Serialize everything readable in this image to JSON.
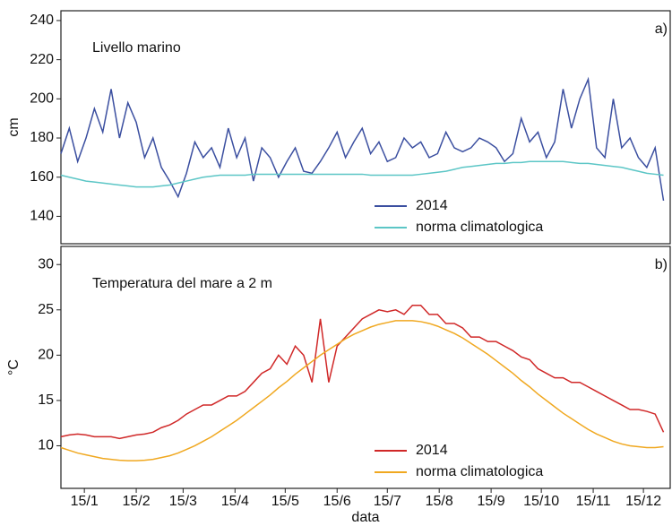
{
  "chart_data": [
    {
      "type": "line",
      "title": "Livello marino",
      "panel_label": "a)",
      "y_label": "cm",
      "x": [
        1,
        6,
        11,
        16,
        21,
        26,
        31,
        36,
        41,
        46,
        51,
        56,
        61,
        66,
        71,
        76,
        81,
        86,
        91,
        96,
        101,
        106,
        111,
        116,
        121,
        126,
        131,
        136,
        141,
        146,
        151,
        156,
        161,
        166,
        171,
        176,
        181,
        186,
        191,
        196,
        201,
        206,
        211,
        216,
        221,
        226,
        231,
        236,
        241,
        246,
        251,
        256,
        261,
        266,
        271,
        276,
        281,
        286,
        291,
        296,
        301,
        306,
        311,
        316,
        321,
        326,
        331,
        336,
        341,
        346,
        351,
        356,
        361
      ],
      "xlim": [
        1,
        365
      ],
      "ylim": [
        126,
        245
      ],
      "yticks": [
        140,
        160,
        180,
        200,
        220,
        240
      ],
      "legend": "lower right",
      "series": [
        {
          "name": "2014",
          "color": "#3b4fa0",
          "values": [
            172,
            185,
            168,
            180,
            195,
            183,
            205,
            180,
            198,
            188,
            170,
            180,
            165,
            158,
            150,
            162,
            178,
            170,
            175,
            165,
            185,
            170,
            180,
            158,
            175,
            170,
            160,
            168,
            175,
            163,
            162,
            168,
            175,
            183,
            170,
            178,
            185,
            172,
            178,
            168,
            170,
            180,
            175,
            178,
            170,
            172,
            183,
            175,
            173,
            175,
            180,
            178,
            175,
            168,
            172,
            190,
            178,
            183,
            170,
            178,
            205,
            185,
            200,
            210,
            175,
            170,
            200,
            175,
            180,
            170,
            165,
            175,
            148
          ]
        },
        {
          "name": "norma climatologica",
          "color": "#5cc6c6",
          "values": [
            161,
            160,
            159,
            158,
            157.5,
            157,
            156.5,
            156,
            155.5,
            155,
            155,
            155,
            155.5,
            156,
            157,
            158,
            159,
            160,
            160.5,
            161,
            161,
            161,
            161,
            161.5,
            161.5,
            161.5,
            161.5,
            161.5,
            161.5,
            161.5,
            161.5,
            161.5,
            161.5,
            161.5,
            161.5,
            161.5,
            161.5,
            161,
            161,
            161,
            161,
            161,
            161,
            161.5,
            162,
            162.5,
            163,
            164,
            165,
            165.5,
            166,
            166.5,
            167,
            167,
            167.5,
            167.5,
            168,
            168,
            168,
            168,
            168,
            167.5,
            167,
            167,
            166.5,
            166,
            165.5,
            165,
            164,
            163,
            162,
            161.5,
            161
          ]
        }
      ]
    },
    {
      "type": "line",
      "title": "Temperatura del mare a 2 m",
      "panel_label": "b)",
      "y_label": "°C",
      "x_label": "data",
      "x": [
        1,
        6,
        11,
        16,
        21,
        26,
        31,
        36,
        41,
        46,
        51,
        56,
        61,
        66,
        71,
        76,
        81,
        86,
        91,
        96,
        101,
        106,
        111,
        116,
        121,
        126,
        131,
        136,
        141,
        146,
        151,
        156,
        161,
        166,
        171,
        176,
        181,
        186,
        191,
        196,
        201,
        206,
        211,
        216,
        221,
        226,
        231,
        236,
        241,
        246,
        251,
        256,
        261,
        266,
        271,
        276,
        281,
        286,
        291,
        296,
        301,
        306,
        311,
        316,
        321,
        326,
        331,
        336,
        341,
        346,
        351,
        356,
        361
      ],
      "xlim": [
        1,
        365
      ],
      "ylim": [
        5.3,
        32
      ],
      "yticks": [
        10,
        15,
        20,
        25,
        30
      ],
      "xticks": [
        {
          "value": 15,
          "label": "15/1"
        },
        {
          "value": 46,
          "label": "15/2"
        },
        {
          "value": 74,
          "label": "15/3"
        },
        {
          "value": 105,
          "label": "15/4"
        },
        {
          "value": 135,
          "label": "15/5"
        },
        {
          "value": 166,
          "label": "15/6"
        },
        {
          "value": 196,
          "label": "15/7"
        },
        {
          "value": 227,
          "label": "15/8"
        },
        {
          "value": 258,
          "label": "15/9"
        },
        {
          "value": 288,
          "label": "15/10"
        },
        {
          "value": 319,
          "label": "15/11"
        },
        {
          "value": 349,
          "label": "15/12"
        }
      ],
      "legend": "lower right",
      "series": [
        {
          "name": "2014",
          "color": "#d02828",
          "values": [
            11,
            11.2,
            11.3,
            11.2,
            11,
            11,
            11,
            10.8,
            11,
            11.2,
            11.3,
            11.5,
            12,
            12.3,
            12.8,
            13.5,
            14,
            14.5,
            14.5,
            15,
            15.5,
            15.5,
            16,
            17,
            18,
            18.5,
            20,
            19,
            21,
            20,
            17,
            24,
            17,
            21,
            22,
            23,
            24,
            24.5,
            25,
            24.8,
            25,
            24.5,
            25.5,
            25.5,
            24.5,
            24.5,
            23.5,
            23.5,
            23,
            22,
            22,
            21.5,
            21.5,
            21,
            20.5,
            19.8,
            19.5,
            18.5,
            18,
            17.5,
            17.5,
            17,
            17,
            16.5,
            16,
            15.5,
            15,
            14.5,
            14,
            14,
            13.8,
            13.5,
            11.5
          ]
        },
        {
          "name": "norma climatologica",
          "color": "#f0a820",
          "values": [
            9.8,
            9.5,
            9.2,
            9.0,
            8.8,
            8.6,
            8.5,
            8.4,
            8.35,
            8.35,
            8.4,
            8.5,
            8.7,
            8.9,
            9.2,
            9.6,
            10.0,
            10.5,
            11.0,
            11.6,
            12.2,
            12.8,
            13.5,
            14.2,
            14.9,
            15.6,
            16.4,
            17.1,
            17.9,
            18.6,
            19.3,
            20.0,
            20.6,
            21.2,
            21.8,
            22.3,
            22.7,
            23.1,
            23.4,
            23.6,
            23.8,
            23.8,
            23.8,
            23.7,
            23.5,
            23.2,
            22.8,
            22.4,
            21.9,
            21.3,
            20.7,
            20.1,
            19.4,
            18.7,
            18.0,
            17.2,
            16.5,
            15.7,
            15.0,
            14.3,
            13.6,
            13.0,
            12.4,
            11.8,
            11.3,
            10.9,
            10.5,
            10.2,
            10.0,
            9.9,
            9.8,
            9.8,
            9.9
          ]
        }
      ]
    }
  ]
}
